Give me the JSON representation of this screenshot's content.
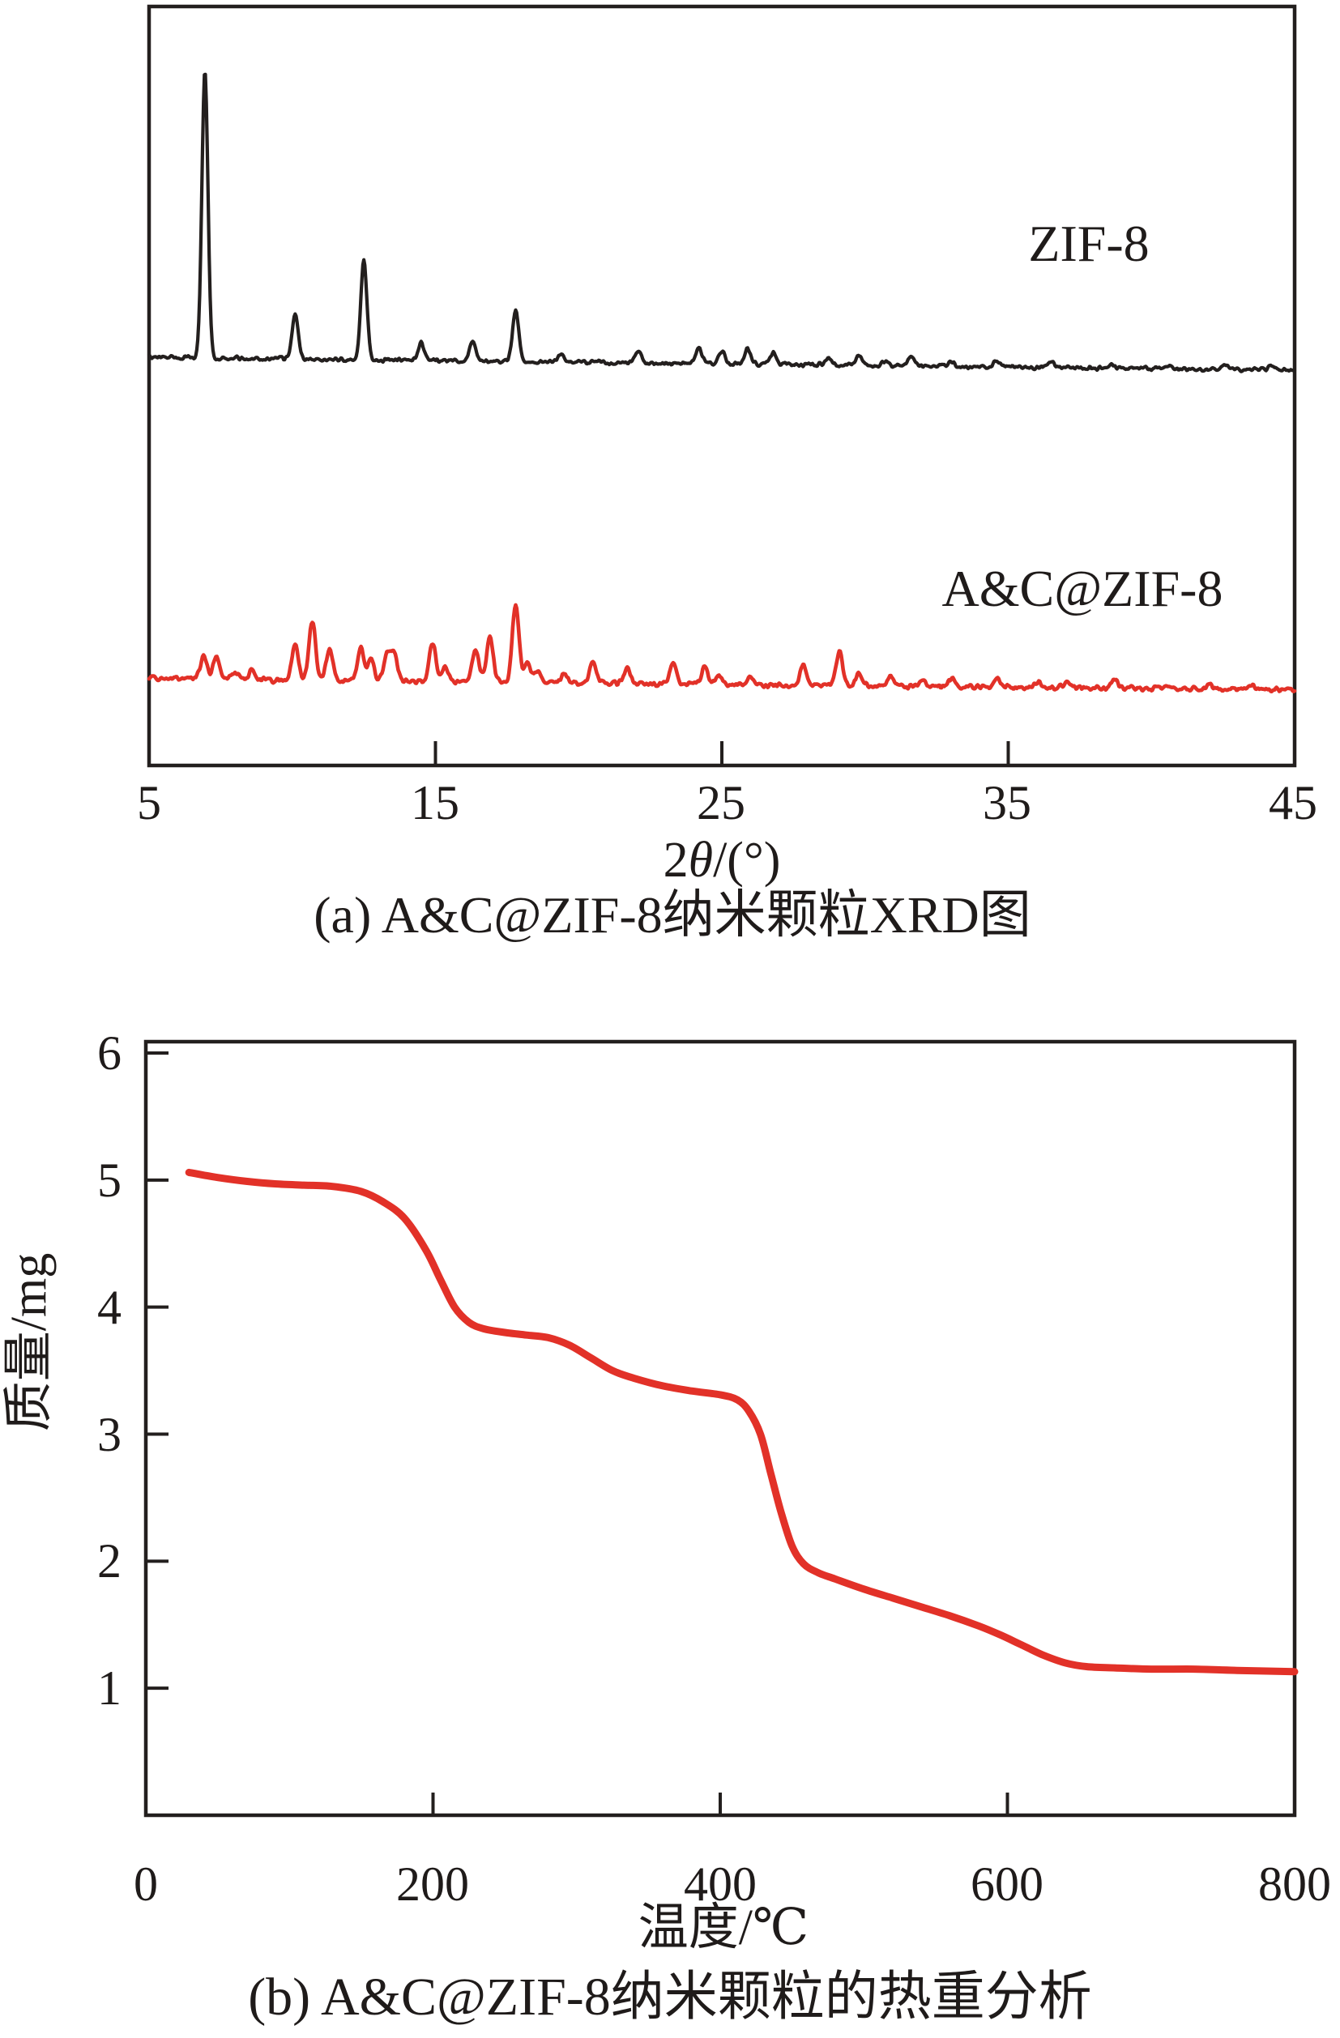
{
  "colors": {
    "background": "#ffffff",
    "axis": "#231f1e",
    "trace_black": "#231f1e",
    "trace_red": "#e23128"
  },
  "chart_data": [
    {
      "id": "xrd",
      "type": "line",
      "caption": "(a) A&C@ZIF-8纳米颗粒XRD图",
      "xlabel_parts": [
        "2",
        "θ",
        "/(°)"
      ],
      "xlim": [
        5,
        45
      ],
      "xticks": [
        5,
        15,
        25,
        35,
        45
      ],
      "grid": false,
      "legend_position": "inline-labels",
      "series": [
        {
          "name": "ZIF-8",
          "color": "#231f1e",
          "peaks_note": "pairs of [two_theta_deg, relative_intensity_0_100]",
          "peaks": [
            [
              6.95,
              100
            ],
            [
              10.1,
              16
            ],
            [
              12.5,
              35
            ],
            [
              14.5,
              6
            ],
            [
              16.3,
              7
            ],
            [
              17.8,
              18
            ],
            [
              19.4,
              2.5
            ],
            [
              22.1,
              4.5
            ],
            [
              24.2,
              5.5
            ],
            [
              25.0,
              4.3
            ],
            [
              25.9,
              5.5
            ],
            [
              26.8,
              4.5
            ],
            [
              28.7,
              2.3
            ],
            [
              29.8,
              3.1
            ],
            [
              30.7,
              1.7
            ],
            [
              31.6,
              3.4
            ],
            [
              33.0,
              1.7
            ],
            [
              34.6,
              2.3
            ],
            [
              36.5,
              2.3
            ],
            [
              38.6,
              1.4
            ],
            [
              40.6,
              1.1
            ],
            [
              42.6,
              1.1
            ],
            [
              44.2,
              1.4
            ]
          ]
        },
        {
          "name": "A&C@ZIF-8",
          "color": "#e23128",
          "peaks_note": "pairs of [two_theta_deg, relative_intensity_0_100]",
          "peaks": [
            [
              6.9,
              29
            ],
            [
              7.35,
              31
            ],
            [
              8.0,
              10
            ],
            [
              8.6,
              12
            ],
            [
              10.1,
              46
            ],
            [
              10.7,
              76
            ],
            [
              11.3,
              40
            ],
            [
              12.4,
              41
            ],
            [
              12.75,
              26
            ],
            [
              13.3,
              33
            ],
            [
              13.55,
              36
            ],
            [
              14.9,
              48
            ],
            [
              15.35,
              19
            ],
            [
              16.4,
              42
            ],
            [
              16.9,
              58
            ],
            [
              17.8,
              100
            ],
            [
              18.2,
              25
            ],
            [
              18.55,
              15
            ],
            [
              19.5,
              12
            ],
            [
              20.5,
              26
            ],
            [
              21.7,
              19
            ],
            [
              23.3,
              26
            ],
            [
              24.4,
              21
            ],
            [
              24.9,
              12
            ],
            [
              26.0,
              10
            ],
            [
              27.85,
              25
            ],
            [
              29.1,
              43
            ],
            [
              29.8,
              16
            ],
            [
              30.9,
              12
            ],
            [
              32.0,
              8
            ],
            [
              33.0,
              10
            ],
            [
              34.6,
              10
            ],
            [
              36.0,
              8
            ],
            [
              37.0,
              6
            ],
            [
              38.7,
              12
            ],
            [
              40.5,
              6
            ],
            [
              42.0,
              6
            ],
            [
              43.5,
              6
            ]
          ]
        }
      ]
    },
    {
      "id": "tga",
      "type": "line",
      "caption": "(b) A&C@ZIF-8纳米颗粒的热重分析",
      "xlabel": "温度/℃",
      "ylabel": "质量/mg",
      "xlim": [
        0,
        800
      ],
      "ylim": [
        0,
        6
      ],
      "xticks": [
        0,
        200,
        400,
        600,
        800
      ],
      "yticks": [
        6,
        5,
        4,
        3,
        2,
        1
      ],
      "grid": false,
      "series": [
        {
          "name": "A&C@ZIF-8",
          "color": "#e23128",
          "points_note": "pairs of [temperature_C, mass_mg]",
          "points": [
            [
              30,
              5.06
            ],
            [
              50,
              5.02
            ],
            [
              70,
              4.99
            ],
            [
              90,
              4.97
            ],
            [
              110,
              4.96
            ],
            [
              130,
              4.95
            ],
            [
              150,
              4.91
            ],
            [
              165,
              4.83
            ],
            [
              180,
              4.7
            ],
            [
              195,
              4.45
            ],
            [
              205,
              4.22
            ],
            [
              215,
              4.0
            ],
            [
              225,
              3.88
            ],
            [
              235,
              3.83
            ],
            [
              250,
              3.8
            ],
            [
              265,
              3.78
            ],
            [
              280,
              3.76
            ],
            [
              295,
              3.7
            ],
            [
              310,
              3.6
            ],
            [
              325,
              3.5
            ],
            [
              340,
              3.44
            ],
            [
              360,
              3.38
            ],
            [
              380,
              3.34
            ],
            [
              400,
              3.31
            ],
            [
              412,
              3.27
            ],
            [
              420,
              3.18
            ],
            [
              428,
              3.0
            ],
            [
              435,
              2.7
            ],
            [
              442,
              2.4
            ],
            [
              450,
              2.12
            ],
            [
              458,
              1.98
            ],
            [
              468,
              1.91
            ],
            [
              480,
              1.86
            ],
            [
              500,
              1.78
            ],
            [
              520,
              1.71
            ],
            [
              540,
              1.64
            ],
            [
              560,
              1.57
            ],
            [
              580,
              1.49
            ],
            [
              595,
              1.42
            ],
            [
              610,
              1.34
            ],
            [
              625,
              1.26
            ],
            [
              640,
              1.2
            ],
            [
              655,
              1.17
            ],
            [
              675,
              1.16
            ],
            [
              700,
              1.15
            ],
            [
              730,
              1.15
            ],
            [
              760,
              1.14
            ],
            [
              800,
              1.13
            ]
          ]
        }
      ]
    }
  ]
}
